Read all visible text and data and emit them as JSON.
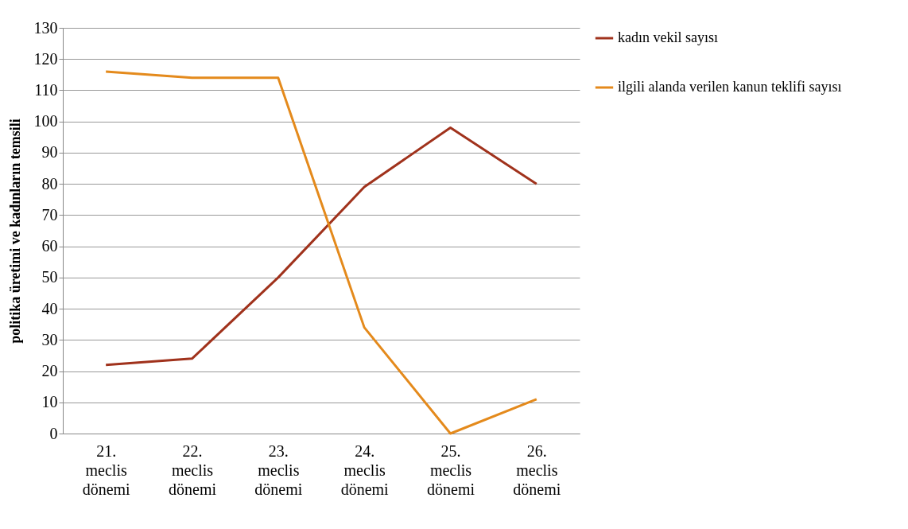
{
  "chart_data": {
    "type": "line",
    "ylabel": "politika üretimi ve kadınların temsili",
    "categories": [
      "21. meclis dönemi",
      "22. meclis dönemi",
      "23. meclis dönemi",
      "24. meclis dönemi",
      "25. meclis dönemi",
      "26. meclis dönemi"
    ],
    "series": [
      {
        "name": "kadın vekil sayısı",
        "color": "#a0321c",
        "values": [
          22,
          24,
          50,
          79,
          98,
          80
        ]
      },
      {
        "name": "ilgili alanda verilen kanun teklifi sayısı",
        "color": "#e48a1c",
        "values": [
          116,
          114,
          114,
          34,
          0,
          11
        ]
      }
    ],
    "ylim": [
      0,
      130
    ],
    "yticks": [
      0,
      10,
      20,
      30,
      40,
      50,
      60,
      70,
      80,
      90,
      100,
      110,
      120,
      130
    ],
    "grid": "y",
    "legend": "right",
    "marker": "none",
    "line_style": "solid"
  }
}
